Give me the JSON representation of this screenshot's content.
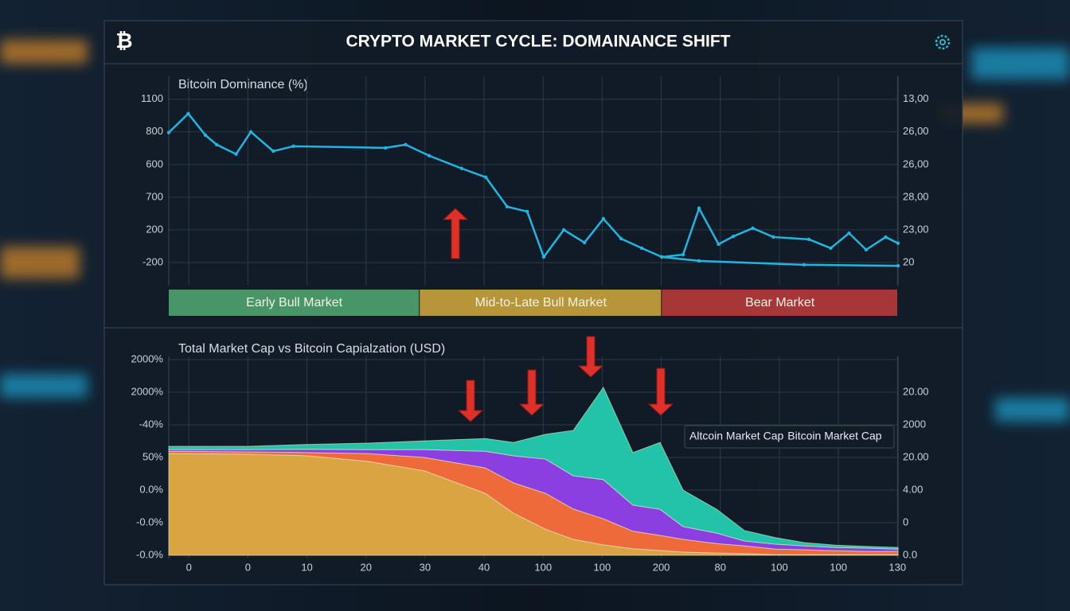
{
  "header": {
    "logo": "₿",
    "title": "CRYPTO MARKET CYCLE: DOMAINANCE SHIFT"
  },
  "chart_data": [
    {
      "type": "line",
      "title": "Bitcoin Dominance (%)",
      "xlim": [
        -0.34,
        12.01
      ],
      "ylim": [
        -0.7,
        5.7
      ],
      "y2lim": [
        -0.7,
        5.7
      ],
      "grid": true,
      "yticks": [
        {
          "value": 5,
          "label": "1100"
        },
        {
          "value": 4,
          "label": "800"
        },
        {
          "value": 3,
          "label": "600"
        },
        {
          "value": 2,
          "label": "700"
        },
        {
          "value": 1,
          "label": "200"
        },
        {
          "value": 0,
          "label": "-200"
        }
      ],
      "y2ticks": [
        {
          "value": 5,
          "label": "13,00"
        },
        {
          "value": 4,
          "label": "26,00"
        },
        {
          "value": 3,
          "label": "26,00"
        },
        {
          "value": 2,
          "label": "28,00"
        },
        {
          "value": 1,
          "label": "23,00"
        },
        {
          "value": 0,
          "label": "20"
        }
      ],
      "series": [
        {
          "color": "#1fb6e0",
          "x": [
            -0.34,
            -0.01,
            0.28,
            0.47,
            0.8,
            1.05,
            1.43,
            1.77,
            3.33,
            3.67,
            4.07,
            4.62,
            5.03,
            5.39,
            5.73,
            6.01,
            6.35,
            6.7,
            7.02,
            7.32,
            7.67,
            8.01,
            8.37,
            8.64,
            8.97,
            9.22,
            9.55,
            9.9,
            10.5,
            10.87,
            11.18,
            11.47,
            11.8,
            12.01
          ],
          "values": [
            3.98,
            4.56,
            3.9,
            3.61,
            3.32,
            4.0,
            3.41,
            3.56,
            3.51,
            3.61,
            3.27,
            2.88,
            2.61,
            1.71,
            1.56,
            0.17,
            1.0,
            0.61,
            1.34,
            0.73,
            0.44,
            0.17,
            0.24,
            1.66,
            0.56,
            0.8,
            1.05,
            0.78,
            0.71,
            0.44,
            0.9,
            0.39,
            0.78,
            0.59
          ]
        },
        {
          "color": "#1fb6e0",
          "x": [
            8.01,
            8.64,
            10.42,
            12.01
          ],
          "values": [
            0.17,
            0.05,
            -0.07,
            -0.1
          ]
        }
      ],
      "bands": [
        {
          "label": "Early Bull Market",
          "start": -0.34,
          "end": 3.91,
          "color": "#4fa36f"
        },
        {
          "label": "Mid-to-Late Bull Market",
          "start": 3.91,
          "end": 8.01,
          "color": "#c9a43c"
        },
        {
          "label": "Bear Market",
          "start": 8.01,
          "end": 12.01,
          "color": "#b83a3a"
        }
      ]
    },
    {
      "type": "area",
      "stacked": true,
      "title": "Total Market Cap vs Bitcoin Capialzation (USD)",
      "xlim": [
        -0.34,
        12.01
      ],
      "ylim": [
        -0.1,
        6.1
      ],
      "y2lim": [
        -0.1,
        6.1
      ],
      "grid": true,
      "legend": "right",
      "x": [
        -0.34,
        1.02,
        2.02,
        3.03,
        3.99,
        5.02,
        5.5,
        6.04,
        6.51,
        7.02,
        7.52,
        7.98,
        8.37,
        8.94,
        9.41,
        9.94,
        10.42,
        10.95,
        11.5,
        12.01
      ],
      "xticks": [
        {
          "value": 0,
          "label": "0"
        },
        {
          "value": 1,
          "label": "0"
        },
        {
          "value": 2,
          "label": "10"
        },
        {
          "value": 3,
          "label": "20"
        },
        {
          "value": 4,
          "label": "30"
        },
        {
          "value": 5,
          "label": "40"
        },
        {
          "value": 6,
          "label": "100"
        },
        {
          "value": 7,
          "label": "100"
        },
        {
          "value": 8,
          "label": "200"
        },
        {
          "value": 9,
          "label": "80"
        },
        {
          "value": 10,
          "label": "100"
        },
        {
          "value": 11,
          "label": "100"
        },
        {
          "value": 12,
          "label": "130"
        }
      ],
      "yticks": [
        {
          "value": 6,
          "label": "2000%"
        },
        {
          "value": 5,
          "label": "2000%"
        },
        {
          "value": 4,
          "label": "-40%"
        },
        {
          "value": 3,
          "label": "50%"
        },
        {
          "value": 2,
          "label": "0.0%"
        },
        {
          "value": 1,
          "label": "-0.0%"
        },
        {
          "value": 0,
          "label": "-0.0%"
        }
      ],
      "y2ticks": [
        {
          "value": 5,
          "label": "20.00"
        },
        {
          "value": 4,
          "label": "2000"
        },
        {
          "value": 3,
          "label": "20.00"
        },
        {
          "value": 2,
          "label": "4.00"
        },
        {
          "value": 1,
          "label": "0"
        },
        {
          "value": 0,
          "label": "0.0"
        }
      ],
      "series": [
        {
          "name": "Bitcoin Market Cap",
          "color": "#d9a441",
          "values": [
            3.12,
            3.1,
            3.05,
            2.88,
            2.59,
            1.9,
            1.29,
            0.8,
            0.49,
            0.32,
            0.2,
            0.15,
            0.1,
            0.07,
            0.05,
            0.02,
            0.02,
            0.02,
            0.02,
            0.02
          ]
        },
        {
          "color": "#ef6a3a",
          "values": [
            0.07,
            0.07,
            0.1,
            0.24,
            0.41,
            0.78,
            0.93,
            1.1,
            0.93,
            0.8,
            0.54,
            0.46,
            0.39,
            0.29,
            0.24,
            0.17,
            0.15,
            0.12,
            0.1,
            0.1
          ]
        },
        {
          "color": "#8b3fe0",
          "values": [
            0.05,
            0.07,
            0.1,
            0.12,
            0.24,
            0.51,
            0.83,
            1.05,
            1.02,
            1.2,
            0.8,
            0.8,
            0.39,
            0.32,
            0.15,
            0.15,
            0.12,
            0.1,
            0.1,
            0.07
          ]
        },
        {
          "name": "Altcoin Market Cap",
          "color": "#22c3a8",
          "values": [
            0.1,
            0.1,
            0.15,
            0.2,
            0.27,
            0.39,
            0.41,
            0.76,
            1.39,
            2.83,
            1.61,
            2.05,
            1.12,
            0.73,
            0.32,
            0.2,
            0.1,
            0.07,
            0.05,
            0.05
          ]
        }
      ]
    }
  ]
}
